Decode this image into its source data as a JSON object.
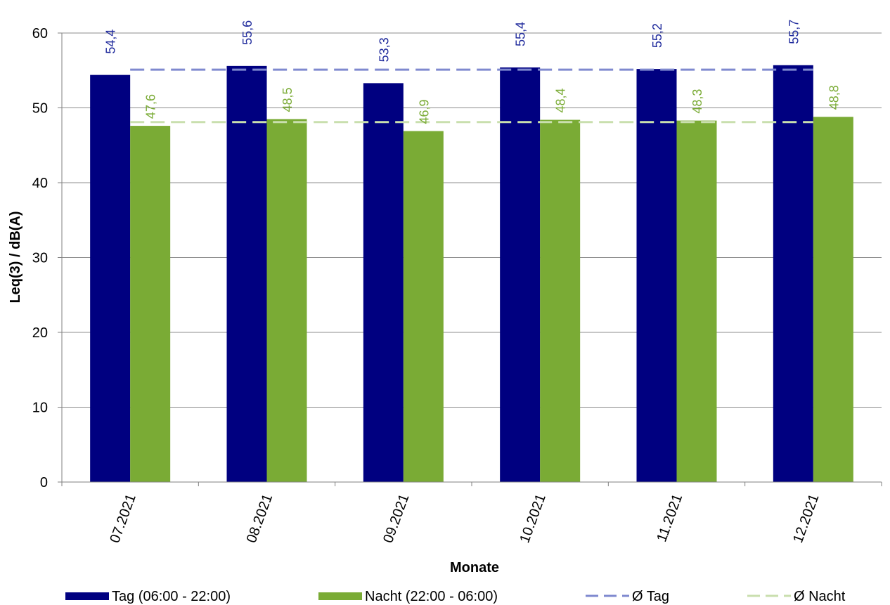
{
  "chart_data": {
    "type": "bar",
    "title": "",
    "xlabel": "Monate",
    "ylabel": "Leq(3) / dB(A)",
    "ylim": [
      0,
      60
    ],
    "yticks": [
      0,
      10,
      20,
      30,
      40,
      50,
      60
    ],
    "grid": true,
    "legend_position": "bottom",
    "categories": [
      "07.2021",
      "08.2021",
      "09.2021",
      "10.2021",
      "11.2021",
      "12.2021"
    ],
    "series": [
      {
        "name": "Tag (06:00 - 22:00)",
        "values": [
          54.4,
          55.6,
          53.3,
          55.4,
          55.2,
          55.7
        ],
        "labels": [
          "54,4",
          "55,6",
          "53,3",
          "55,4",
          "55,2",
          "55,7"
        ],
        "color": "#000080",
        "label_color": "#1f2a9c"
      },
      {
        "name": "Nacht (22:00 - 06:00)",
        "values": [
          47.6,
          48.5,
          46.9,
          48.4,
          48.3,
          48.8
        ],
        "labels": [
          "47,6",
          "48,5",
          "46,9",
          "48,4",
          "48,3",
          "48,8"
        ],
        "color": "#7aab35",
        "label_color": "#7aab35"
      }
    ],
    "reference_lines": [
      {
        "name": "Ø Tag",
        "value": 55.1,
        "color": "#7f89cf",
        "style": "dashed"
      },
      {
        "name": "Ø Nacht",
        "value": 48.1,
        "color": "#c9dfae",
        "style": "dashed"
      }
    ]
  }
}
